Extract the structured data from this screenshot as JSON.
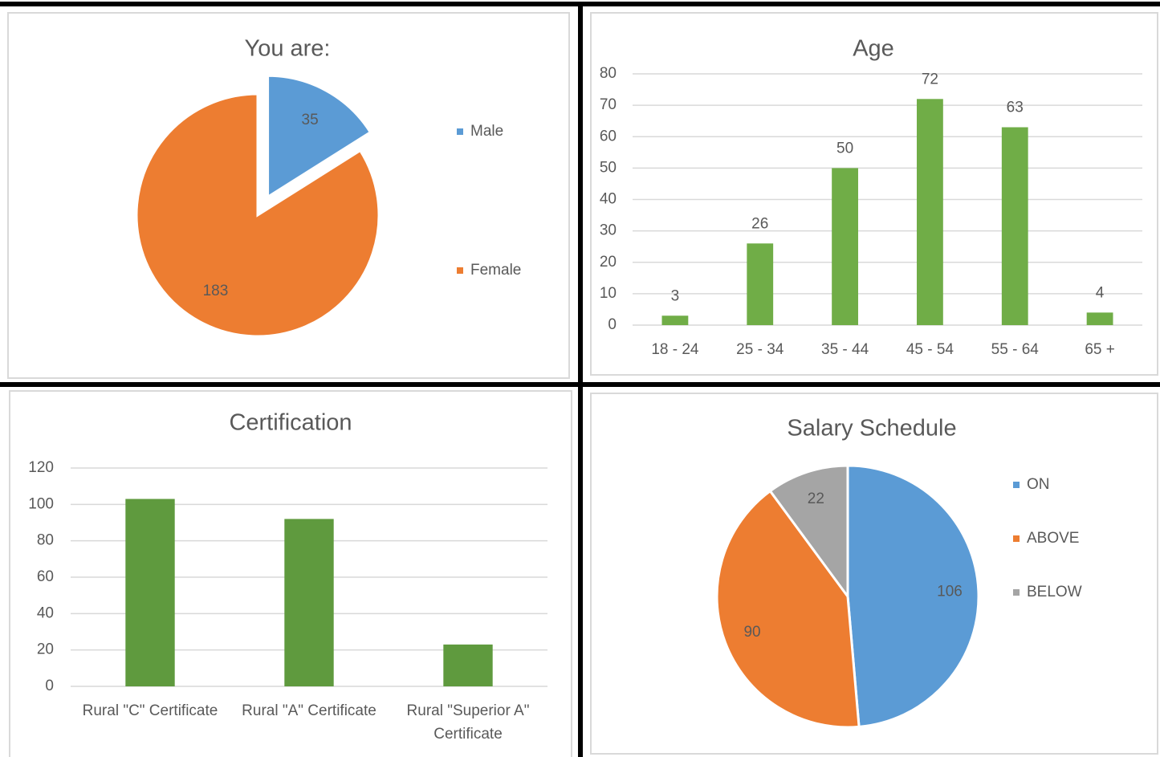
{
  "chart_data": [
    {
      "type": "pie",
      "title": "You are:",
      "categories": [
        "Male",
        "Female"
      ],
      "values": [
        35,
        183
      ],
      "colors": [
        "#5b9bd5",
        "#ed7d31"
      ],
      "exploded": [
        true,
        false
      ],
      "data_labels": true,
      "legend": "right"
    },
    {
      "type": "bar",
      "title": "Age",
      "categories": [
        "18 - 24",
        "25 - 34",
        "35 - 44",
        "45 - 54",
        "55 - 64",
        "65 +"
      ],
      "values": [
        3,
        26,
        50,
        72,
        63,
        4
      ],
      "color": "#70ad47",
      "ylim": [
        0,
        80
      ],
      "yticks": [
        0,
        10,
        20,
        30,
        40,
        50,
        60,
        70,
        80
      ],
      "grid": true,
      "data_labels": true
    },
    {
      "type": "bar",
      "title": "Certification",
      "categories": [
        "Rural \"C\" Certificate",
        "Rural \"A\" Certificate",
        "Rural \"Superior A\" Certificate"
      ],
      "values": [
        103,
        92,
        23
      ],
      "color": "#5f9a3e",
      "ylim": [
        0,
        120
      ],
      "yticks": [
        0,
        20,
        40,
        60,
        80,
        100,
        120
      ],
      "grid": true,
      "data_labels": false
    },
    {
      "type": "pie",
      "title": "Salary Schedule",
      "categories": [
        "ON",
        "ABOVE",
        "BELOW"
      ],
      "values": [
        106,
        90,
        22
      ],
      "colors": [
        "#5b9bd5",
        "#ed7d31",
        "#a5a5a5"
      ],
      "exploded": [
        false,
        false,
        false
      ],
      "data_labels": true,
      "legend": "right"
    }
  ]
}
